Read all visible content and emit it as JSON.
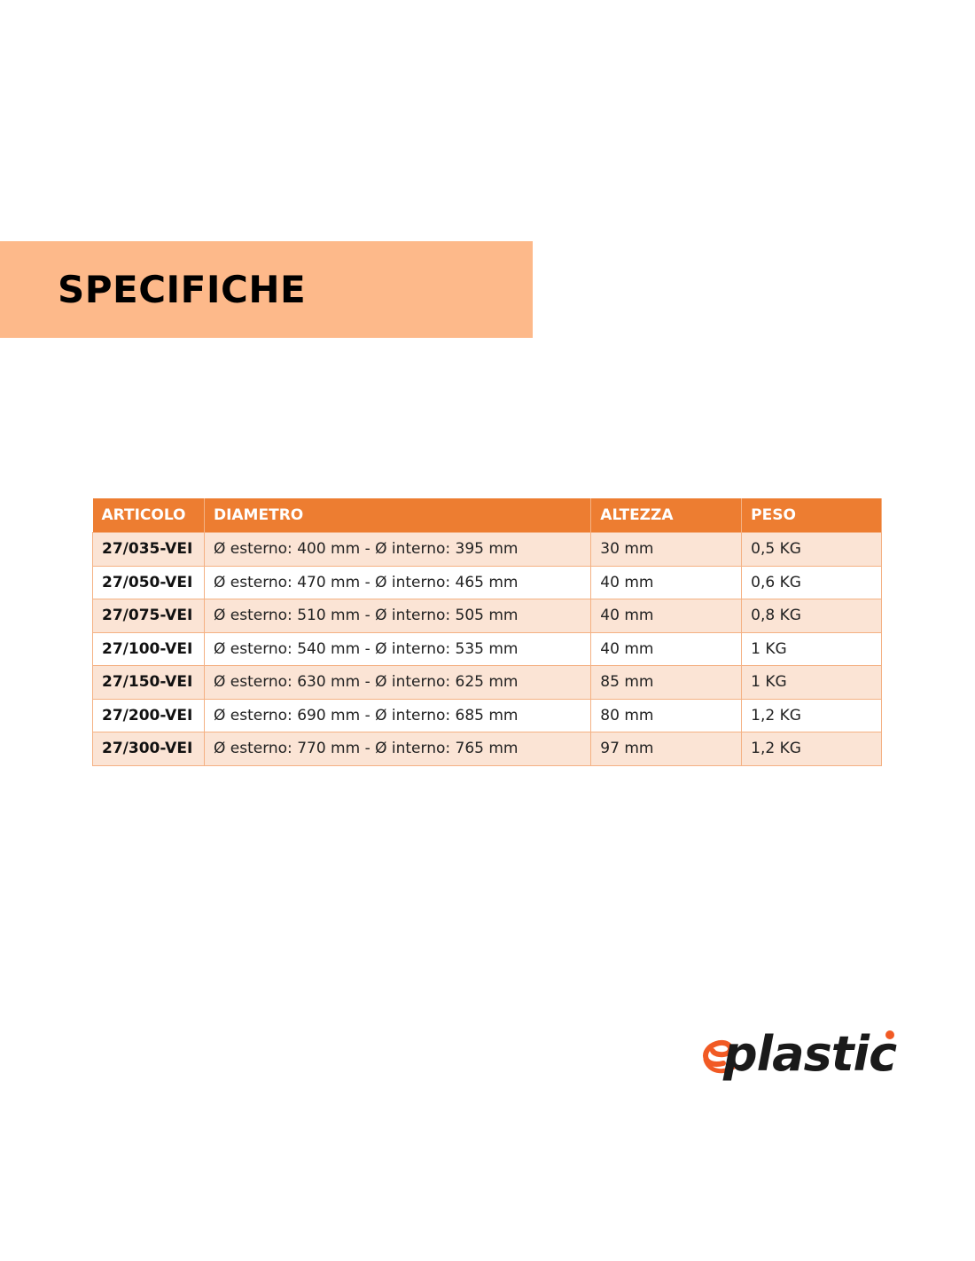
{
  "section_title": "SPECIFICHE",
  "table": {
    "headers": [
      "ARTICOLO",
      "DIAMETRO",
      "ALTEZZA",
      "PESO"
    ],
    "rows": [
      [
        "27/035-VEI",
        "Ø esterno: 400 mm - Ø interno: 395 mm",
        "30 mm",
        "0,5 KG"
      ],
      [
        "27/050-VEI",
        "Ø esterno: 470 mm - Ø interno: 465 mm",
        "40 mm",
        "0,6 KG"
      ],
      [
        "27/075-VEI",
        "Ø esterno: 510 mm - Ø interno: 505 mm",
        "40 mm",
        "0,8 KG"
      ],
      [
        "27/100-VEI",
        "Ø esterno: 540 mm - Ø interno: 535 mm",
        "40 mm",
        "1 KG"
      ],
      [
        "27/150-VEI",
        "Ø esterno: 630 mm - Ø interno: 625 mm",
        "85 mm",
        "1 KG"
      ],
      [
        "27/200-VEI",
        "Ø esterno: 690 mm - Ø interno: 685 mm",
        "80 mm",
        "1,2 KG"
      ],
      [
        "27/300-VEI",
        "Ø esterno: 770 mm - Ø interno: 765 mm",
        "97 mm",
        "1,2 KG"
      ]
    ]
  },
  "logo": {
    "text": "eplastic",
    "accent_color": "#f15a24"
  },
  "colors": {
    "header": "#ed7d31",
    "banner": "#fdb98a",
    "row_alt": "#fbe4d5"
  }
}
